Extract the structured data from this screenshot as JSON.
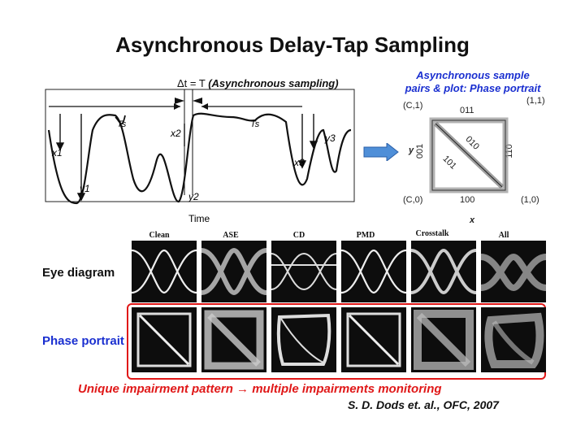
{
  "title": "Asynchronous Delay-Tap Sampling",
  "timing_plot": {
    "delta_prefix": "Δt = T",
    "delta_note": "(Asynchronous sampling)",
    "ts_label_1": "Ts",
    "ts_label_2": "Ts",
    "x1": "x1",
    "y1": "y1",
    "x2": "x2",
    "y2": "y2",
    "x3": "x3",
    "y3": "y3",
    "xlabel": "Time"
  },
  "phase_portrait": {
    "title_line1": "Asynchronous sample",
    "title_line2": "pairs & plot: Phase portrait",
    "corner_tl": "(C,1)",
    "corner_tr": "(1,1)",
    "corner_bl": "(C,0)",
    "corner_br": "(1,0)",
    "top_code": "011",
    "bottom_code": "100",
    "left_code": "001",
    "right_code": "110",
    "diag_code_1": "010",
    "diag_code_2": "101",
    "axis_y": "y",
    "axis_x": "x"
  },
  "grid": {
    "columns": [
      "Clean",
      "ASE",
      "CD",
      "PMD",
      "Crosstalk",
      "All"
    ],
    "row_eye": "Eye diagram",
    "row_phase": "Phase portrait"
  },
  "caption": "Unique impairment pattern → multiple impairments monitoring",
  "citation": "S. D. Dods et. al., OFC, 2007",
  "colors": {
    "accent_red": "#e01818",
    "accent_blue": "#1a2fd0",
    "arrow_blue": "#4f8fd8"
  }
}
